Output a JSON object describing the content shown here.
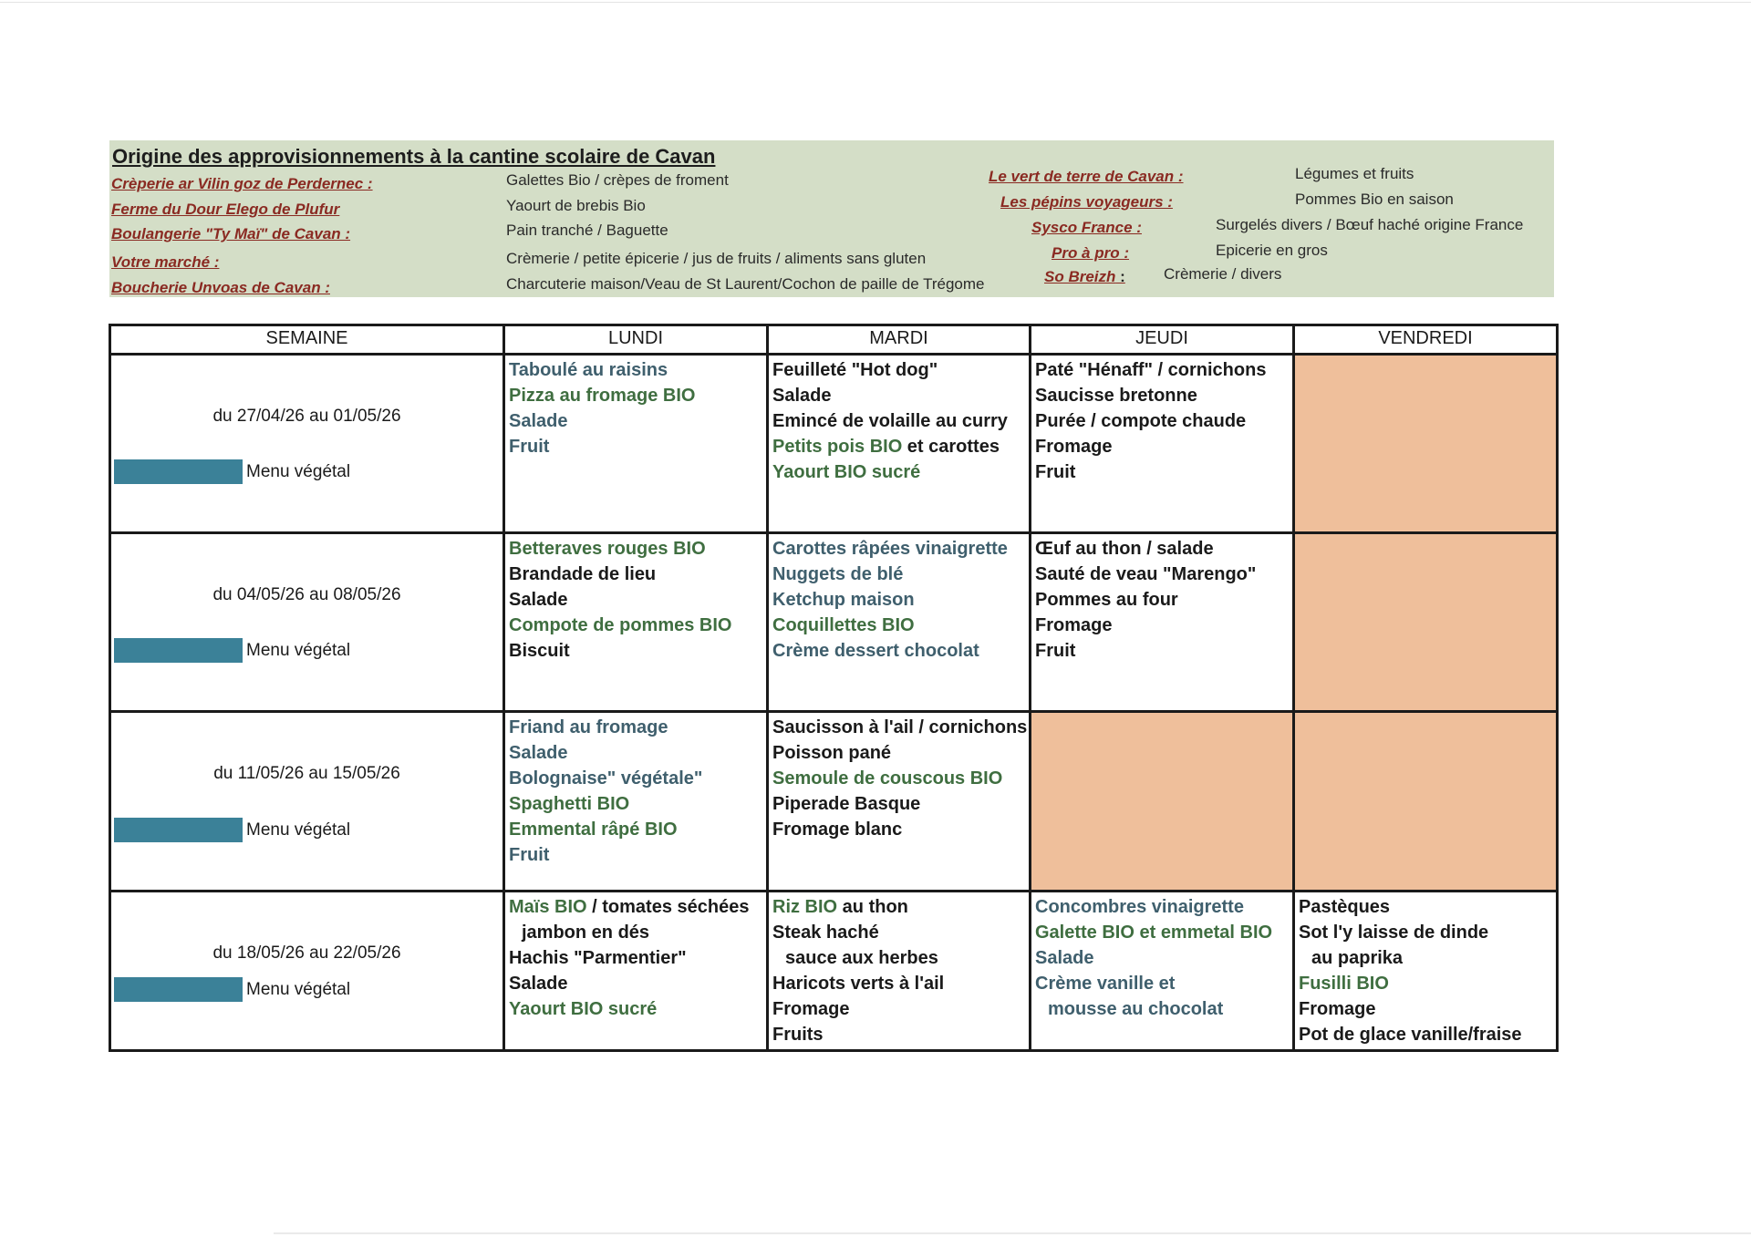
{
  "colors": {
    "green": "#3f6e40",
    "blue": "#3f5f6d",
    "black": "#1a1a1a",
    "closed": "#efbf9b",
    "vegetal": "#3b8198",
    "sources_bg": "#d4dec7",
    "supplier": "#8a2a22"
  },
  "sources": {
    "title": "Origine des approvisionnements à la cantine scolaire de Cavan",
    "left": [
      {
        "name": "Crèperie ar Vilin goz de Perdernec :",
        "desc": "Galettes Bio / crèpes de froment"
      },
      {
        "name": "Ferme du Dour Elego de Plufur",
        "desc": "Yaourt de brebis Bio"
      },
      {
        "name": "Boulangerie \"Ty Maï\" de Cavan :",
        "desc": "Pain tranché / Baguette"
      },
      {
        "name": "Votre marché  :",
        "desc": "Crèmerie / petite épicerie / jus de fruits / aliments sans gluten"
      },
      {
        "name": "Boucherie Unvoas de Cavan :",
        "desc": "Charcuterie maison/Veau de St Laurent/Cochon de paille de Trégome"
      }
    ],
    "right": [
      {
        "name": "Le vert de terre de Cavan :",
        "desc": "Légumes et fruits"
      },
      {
        "name": "Les pépins voyageurs :",
        "desc": "Pommes Bio en saison"
      },
      {
        "name": "Sysco France :",
        "desc": "Surgelés divers / Bœuf haché origine France"
      },
      {
        "name": "Pro à pro :",
        "desc": "Epicerie en gros"
      },
      {
        "name": "So Breizh",
        "colon": " :",
        "desc": "Crèmerie / divers"
      }
    ]
  },
  "table": {
    "headers": [
      "SEMAINE",
      "LUNDI",
      "MARDI",
      "JEUDI",
      "VENDREDI"
    ],
    "weeks": [
      {
        "label": "du 27/04/26 au 01/05/26",
        "veg_label": "Menu végétal",
        "days": [
          [
            [
              [
                "Taboulé au raisins",
                "blue"
              ]
            ],
            [
              [
                "Pizza au fromage BIO",
                "green"
              ]
            ],
            [
              [
                "Salade",
                "blue"
              ]
            ],
            [
              [
                "Fruit",
                "blue"
              ]
            ]
          ],
          [
            [
              [
                "Feuilleté \"Hot dog\"",
                "black"
              ]
            ],
            [
              [
                "Salade",
                "black"
              ]
            ],
            [
              [
                "Emincé de volaille au curry",
                "black"
              ]
            ],
            [
              [
                "Petits pois BIO",
                "green"
              ],
              [
                " et carottes",
                "black"
              ]
            ],
            [
              [
                "Yaourt BIO sucré",
                "green"
              ]
            ]
          ],
          [
            [
              [
                "Paté \"Hénaff\" / cornichons",
                "black"
              ]
            ],
            [
              [
                "Saucisse bretonne",
                "black"
              ]
            ],
            [
              [
                "Purée / compote chaude",
                "black"
              ]
            ],
            [
              [
                "Fromage",
                "black"
              ]
            ],
            [
              [
                "Fruit",
                "black"
              ]
            ]
          ],
          null
        ]
      },
      {
        "label": "du 04/05/26 au 08/05/26",
        "veg_label": "Menu végétal",
        "days": [
          [
            [
              [
                "Betteraves rouges BIO",
                "green"
              ]
            ],
            [
              [
                "Brandade de lieu",
                "black"
              ]
            ],
            [
              [
                "Salade",
                "black"
              ]
            ],
            [
              [
                "Compote de pommes BIO",
                "green"
              ]
            ],
            [
              [
                "Biscuit",
                "black"
              ]
            ]
          ],
          [
            [
              [
                "Carottes râpées vinaigrette",
                "blue"
              ]
            ],
            [
              [
                "Nuggets de blé",
                "blue"
              ]
            ],
            [
              [
                "Ketchup maison",
                "blue"
              ]
            ],
            [
              [
                "Coquillettes BIO",
                "green"
              ]
            ],
            [
              [
                "Crème dessert chocolat",
                "blue"
              ]
            ]
          ],
          [
            [
              [
                "Œuf au thon / salade",
                "black"
              ]
            ],
            [
              [
                "Sauté de veau \"Marengo\"",
                "black"
              ]
            ],
            [
              [
                "Pommes au four",
                "black"
              ]
            ],
            [
              [
                "Fromage",
                "black"
              ]
            ],
            [
              [
                "Fruit",
                "black"
              ]
            ]
          ],
          null
        ]
      },
      {
        "label": "du 11/05/26 au 15/05/26",
        "veg_label": "Menu végétal",
        "days": [
          [
            [
              [
                "Friand au fromage",
                "blue"
              ]
            ],
            [
              [
                "Salade",
                "blue"
              ]
            ],
            [
              [
                "Bolognaise\" végétale\"",
                "blue"
              ]
            ],
            [
              [
                "Spaghetti BIO",
                "green"
              ]
            ],
            [
              [
                "Emmental râpé BIO",
                "green"
              ]
            ],
            [
              [
                "Fruit",
                "blue"
              ]
            ]
          ],
          [
            [
              [
                "Saucisson à l'ail / cornichons",
                "black"
              ]
            ],
            [
              [
                "Poisson pané",
                "black"
              ]
            ],
            [
              [
                "Semoule de couscous BIO",
                "green"
              ]
            ],
            [
              [
                "Piperade Basque",
                "black"
              ]
            ],
            [
              [
                "Fromage blanc",
                "black"
              ]
            ]
          ],
          null,
          null
        ]
      },
      {
        "label": "du 18/05/26 au 22/05/26",
        "veg_label": "Menu végétal",
        "days": [
          [
            [
              [
                "Maïs BIO",
                "green"
              ],
              [
                " / tomates séchées",
                "black"
              ]
            ],
            [
              [
                "jambon en dés",
                "black",
                "indent"
              ]
            ],
            [
              [
                "Hachis \"Parmentier\"",
                "black"
              ]
            ],
            [
              [
                "Salade",
                "black"
              ]
            ],
            [
              [
                "Yaourt BIO sucré",
                "green"
              ]
            ]
          ],
          [
            [
              [
                "Riz BIO",
                "green"
              ],
              [
                " au thon",
                "black"
              ]
            ],
            [
              [
                "Steak haché",
                "black"
              ]
            ],
            [
              [
                "sauce aux herbes",
                "black",
                "indent"
              ]
            ],
            [
              [
                "Haricots verts à l'ail",
                "black"
              ]
            ],
            [
              [
                "Fromage",
                "black"
              ]
            ],
            [
              [
                "Fruits",
                "black"
              ]
            ]
          ],
          [
            [
              [
                "Concombres vinaigrette",
                "blue"
              ]
            ],
            [
              [
                "Galette BIO et emmetal BIO",
                "green"
              ]
            ],
            [
              [
                "Salade",
                "blue"
              ]
            ],
            [
              [
                "Crème vanille et",
                "blue"
              ]
            ],
            [
              [
                "mousse au chocolat",
                "blue",
                "indent"
              ]
            ]
          ],
          [
            [
              [
                "Pastèques",
                "black"
              ]
            ],
            [
              [
                "Sot l'y laisse de dinde",
                "black"
              ]
            ],
            [
              [
                "au paprika",
                "black",
                "indent"
              ]
            ],
            [
              [
                "Fusilli BIO",
                "green"
              ]
            ],
            [
              [
                "Fromage",
                "black"
              ]
            ],
            [
              [
                "Pot de glace vanille/fraise",
                "black"
              ]
            ]
          ]
        ]
      }
    ]
  }
}
